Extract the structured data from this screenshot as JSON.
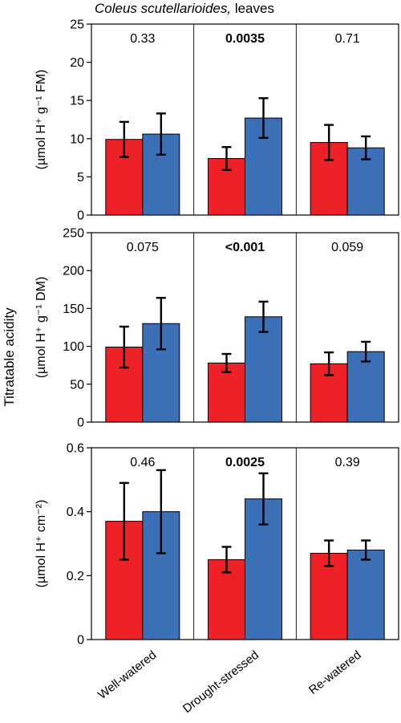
{
  "figure": {
    "title_species": "Coleus scutellarioides,",
    "title_rest": " leaves",
    "shared_ylabel": "Titratable acidity",
    "categories": [
      "Well-watered",
      "Drought-stressed",
      "Re-watered"
    ],
    "colors": {
      "red": "#ee2226",
      "blue": "#3b6fb6"
    }
  },
  "chart_data": [
    {
      "type": "bar",
      "ylabel": "(µmol H⁺ g⁻¹ FM)",
      "ylim": [
        0,
        25
      ],
      "yticks": [
        "0",
        "5",
        "10",
        "15",
        "20",
        "25"
      ],
      "ytick_values": [
        0,
        5,
        10,
        15,
        20,
        25
      ],
      "categories": [
        "Well-watered",
        "Drought-stressed",
        "Re-watered"
      ],
      "p_values": [
        "0.33",
        "0.0035",
        "0.71"
      ],
      "p_bold": [
        false,
        true,
        false
      ],
      "series": [
        {
          "color": "red",
          "values": [
            9.9,
            7.4,
            9.5
          ],
          "errors": [
            2.3,
            1.5,
            2.3
          ]
        },
        {
          "color": "blue",
          "values": [
            10.6,
            12.7,
            8.8
          ],
          "errors": [
            2.7,
            2.6,
            1.5
          ]
        }
      ],
      "grid": false
    },
    {
      "type": "bar",
      "ylabel": "(µmol H⁺ g⁻¹ DM)",
      "ylim": [
        0,
        250
      ],
      "yticks": [
        "0",
        "50",
        "100",
        "150",
        "200",
        "250"
      ],
      "ytick_values": [
        0,
        50,
        100,
        150,
        200,
        250
      ],
      "categories": [
        "Well-watered",
        "Drought-stressed",
        "Re-watered"
      ],
      "p_values": [
        "0.075",
        "<0.001",
        "0.059"
      ],
      "p_bold": [
        false,
        true,
        false
      ],
      "series": [
        {
          "color": "red",
          "values": [
            99,
            78,
            77
          ],
          "errors": [
            27,
            12,
            15
          ]
        },
        {
          "color": "blue",
          "values": [
            130,
            139,
            93
          ],
          "errors": [
            34,
            20,
            13
          ]
        }
      ],
      "grid": false
    },
    {
      "type": "bar",
      "ylabel": "(µmol H⁺ cm⁻²)",
      "ylim": [
        0,
        0.6
      ],
      "yticks": [
        "0",
        "0.2",
        "0.4",
        "0.6"
      ],
      "ytick_values": [
        0,
        0.2,
        0.4,
        0.6
      ],
      "categories": [
        "Well-watered",
        "Drought-stressed",
        "Re-watered"
      ],
      "p_values": [
        "0.46",
        "0.0025",
        "0.39"
      ],
      "p_bold": [
        false,
        true,
        false
      ],
      "series": [
        {
          "color": "red",
          "values": [
            0.37,
            0.25,
            0.27
          ],
          "errors": [
            0.12,
            0.04,
            0.04
          ]
        },
        {
          "color": "blue",
          "values": [
            0.4,
            0.44,
            0.28
          ],
          "errors": [
            0.13,
            0.08,
            0.03
          ]
        }
      ],
      "grid": false
    }
  ]
}
